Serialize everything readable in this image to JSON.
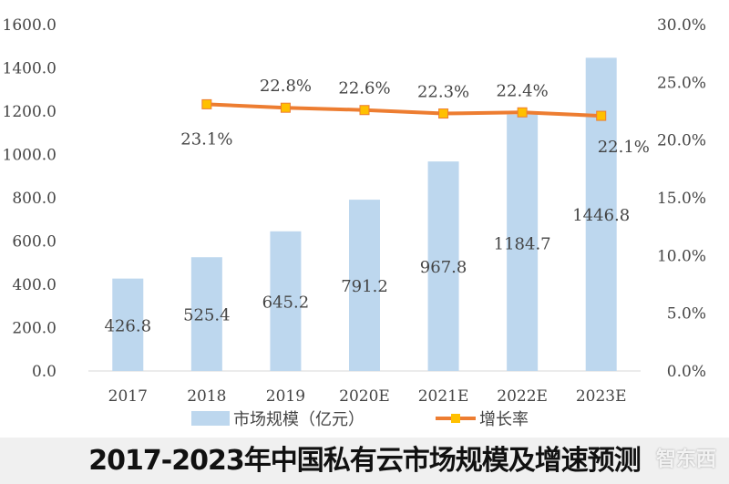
{
  "chart_data": {
    "type": "bar+line",
    "title": "2017-2023年中国私有云市场规模及增速预测",
    "categories": [
      "2017",
      "2018",
      "2019",
      "2020E",
      "2021E",
      "2022E",
      "2023E"
    ],
    "series": [
      {
        "name": "市场规模（亿元）",
        "type": "bar",
        "axis": "left",
        "values": [
          426.8,
          525.4,
          645.2,
          791.2,
          967.8,
          1184.7,
          1446.8
        ],
        "labels": [
          "426.8",
          "525.4",
          "645.2",
          "791.2",
          "967.8",
          "1184.7",
          "1446.8"
        ],
        "color": "#bdd7ee"
      },
      {
        "name": "增长率",
        "type": "line",
        "axis": "right",
        "values": [
          null,
          23.1,
          22.8,
          22.6,
          22.3,
          22.4,
          22.1
        ],
        "labels": [
          "",
          "23.1%",
          "22.8%",
          "22.6%",
          "22.3%",
          "22.4%",
          "22.1%"
        ],
        "color": "#ed7d31",
        "marker_color": "#ffc000"
      }
    ],
    "left_axis": {
      "ylim": [
        0,
        1600
      ],
      "ticks": [
        "0.0",
        "200.0",
        "400.0",
        "600.0",
        "800.0",
        "1000.0",
        "1200.0",
        "1400.0",
        "1600.0"
      ]
    },
    "right_axis": {
      "ylim": [
        0,
        30
      ],
      "ticks": [
        "0.0%",
        "5.0%",
        "10.0%",
        "15.0%",
        "20.0%",
        "25.0%",
        "30.0%"
      ]
    },
    "grid": false,
    "legend": "bottom"
  },
  "watermark": "智东西"
}
